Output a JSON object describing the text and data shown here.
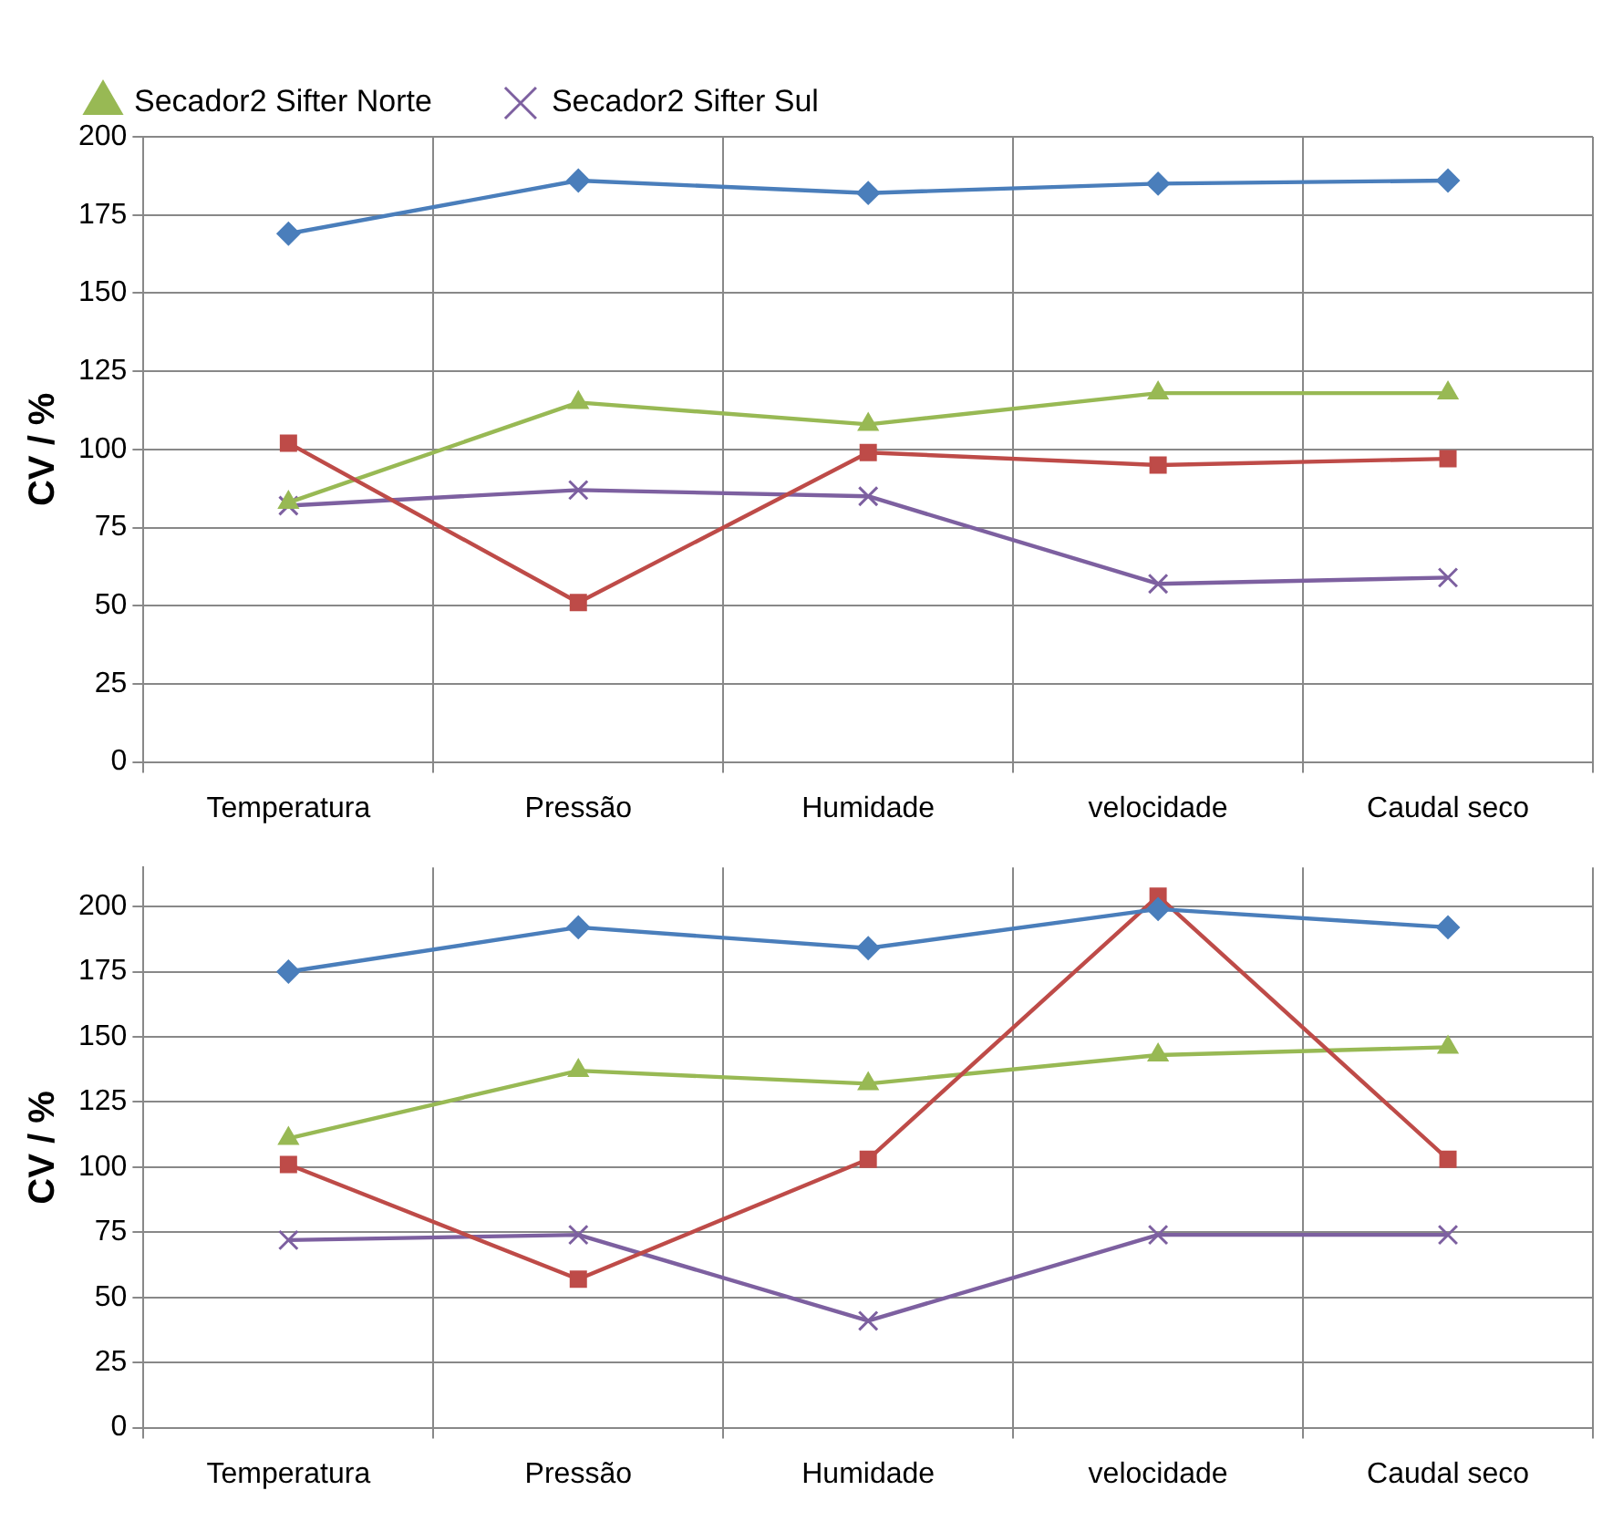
{
  "chart_data": [
    {
      "type": "line",
      "ylabel": "CV / %",
      "categories": [
        "Temperatura",
        "Pressão",
        "Humidade",
        "velocidade",
        "Caudal seco"
      ],
      "ylim": [
        0,
        200
      ],
      "yticks": [
        0,
        25,
        50,
        75,
        100,
        125,
        150,
        175,
        200
      ],
      "grid": true,
      "legend": "top left",
      "series": [
        {
          "color": "#4a7ebb",
          "marker": "diamond",
          "values": [
            169,
            186,
            182,
            185,
            186
          ]
        },
        {
          "color": "#be4b48",
          "marker": "square",
          "values": [
            102,
            51,
            99,
            95,
            97
          ]
        },
        {
          "name": "Secador2 Sifter Norte",
          "color": "#98b954",
          "marker": "triangle",
          "values": [
            83,
            115,
            108,
            118,
            118
          ]
        },
        {
          "name": "Secador2 Sifter Sul",
          "color": "#7d60a0",
          "marker": "cross",
          "values": [
            82,
            87,
            85,
            57,
            59
          ]
        }
      ]
    },
    {
      "type": "line",
      "ylabel": "CV / %",
      "categories": [
        "Temperatura",
        "Pressão",
        "Humidade",
        "velocidade",
        "Caudal seco"
      ],
      "ylim": [
        0,
        215
      ],
      "yticks": [
        0,
        25,
        50,
        75,
        100,
        125,
        150,
        175,
        200
      ],
      "grid": true,
      "series": [
        {
          "color": "#4a7ebb",
          "marker": "diamond",
          "values": [
            175,
            192,
            184,
            199,
            192
          ]
        },
        {
          "color": "#be4b48",
          "marker": "square",
          "values": [
            101,
            57,
            103,
            204,
            103
          ]
        },
        {
          "color": "#98b954",
          "marker": "triangle",
          "values": [
            111,
            137,
            132,
            143,
            146
          ]
        },
        {
          "color": "#7d60a0",
          "marker": "cross",
          "values": [
            72,
            74,
            41,
            74,
            74
          ]
        }
      ]
    }
  ]
}
